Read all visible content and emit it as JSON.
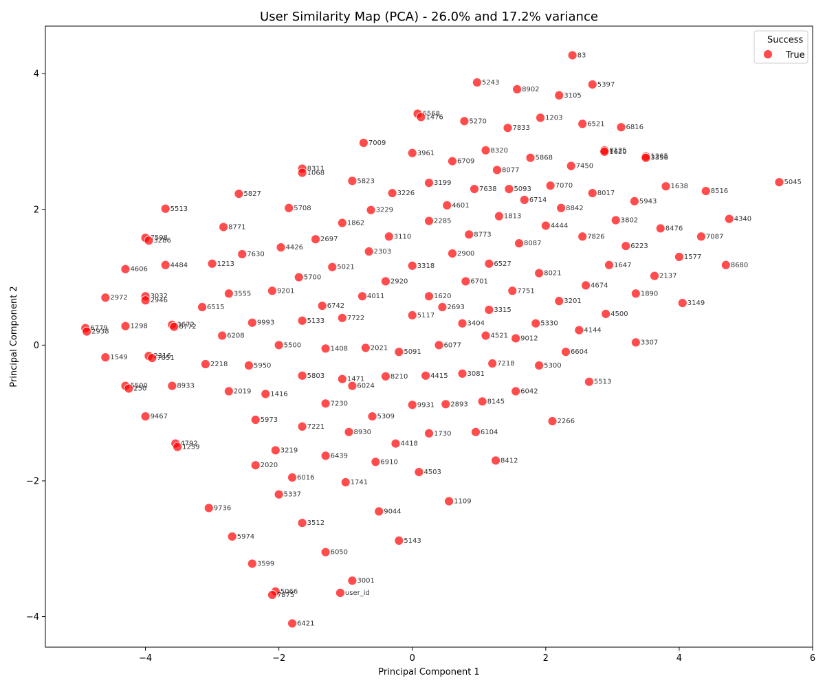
{
  "chart_data": {
    "type": "scatter",
    "title": "User Similarity Map (PCA) - 26.0% and 17.2% variance",
    "xlabel": "Principal Component 1",
    "ylabel": "Principal Component 2",
    "xlim": [
      -5.5,
      6.0
    ],
    "ylim": [
      -4.45,
      4.7
    ],
    "xticks": [
      -4,
      -2,
      0,
      2,
      4,
      6
    ],
    "yticks": [
      -4,
      -2,
      0,
      2,
      4
    ],
    "grid": false,
    "legend": {
      "title": "Success",
      "placement": "top-right",
      "entries": [
        {
          "label": "True",
          "color": "#ff0000"
        }
      ]
    },
    "series": [
      {
        "name": "True",
        "color": "#ff0000",
        "points": [
          {
            "x": 2.4,
            "y": 4.27,
            "label": "83"
          },
          {
            "x": 0.97,
            "y": 3.87,
            "label": "5243"
          },
          {
            "x": 1.57,
            "y": 3.77,
            "label": "8902"
          },
          {
            "x": 2.2,
            "y": 3.68,
            "label": "3105"
          },
          {
            "x": 2.7,
            "y": 3.84,
            "label": "5397"
          },
          {
            "x": 0.08,
            "y": 3.41,
            "label": "6568"
          },
          {
            "x": 0.13,
            "y": 3.36,
            "label": "1476"
          },
          {
            "x": 0.78,
            "y": 3.3,
            "label": "5270"
          },
          {
            "x": 1.43,
            "y": 3.2,
            "label": "7833"
          },
          {
            "x": 1.92,
            "y": 3.35,
            "label": "1203"
          },
          {
            "x": 2.55,
            "y": 3.26,
            "label": "6521"
          },
          {
            "x": 3.13,
            "y": 3.21,
            "label": "6816"
          },
          {
            "x": -0.73,
            "y": 2.98,
            "label": "7009"
          },
          {
            "x": 0.0,
            "y": 2.83,
            "label": "3961"
          },
          {
            "x": 0.6,
            "y": 2.71,
            "label": "6709"
          },
          {
            "x": 1.1,
            "y": 2.87,
            "label": "8320"
          },
          {
            "x": 1.27,
            "y": 2.58,
            "label": "8077"
          },
          {
            "x": 1.77,
            "y": 2.76,
            "label": "5868"
          },
          {
            "x": 2.38,
            "y": 2.64,
            "label": "7450"
          },
          {
            "x": 2.88,
            "y": 2.87,
            "label": "8125"
          },
          {
            "x": 2.88,
            "y": 2.85,
            "label": "1620"
          },
          {
            "x": 3.5,
            "y": 2.78,
            "label": "1265"
          },
          {
            "x": 3.5,
            "y": 2.76,
            "label": "3356"
          },
          {
            "x": -1.65,
            "y": 2.6,
            "label": "8311"
          },
          {
            "x": -1.65,
            "y": 2.54,
            "label": "1068"
          },
          {
            "x": -2.6,
            "y": 2.23,
            "label": "5827"
          },
          {
            "x": -0.9,
            "y": 2.42,
            "label": "5823"
          },
          {
            "x": -0.3,
            "y": 2.24,
            "label": "3226"
          },
          {
            "x": 0.25,
            "y": 2.39,
            "label": "3199"
          },
          {
            "x": 0.93,
            "y": 2.3,
            "label": "7638"
          },
          {
            "x": 1.45,
            "y": 2.3,
            "label": "5093"
          },
          {
            "x": 2.07,
            "y": 2.35,
            "label": "7070"
          },
          {
            "x": 2.7,
            "y": 2.24,
            "label": "8017"
          },
          {
            "x": 3.8,
            "y": 2.34,
            "label": "1638"
          },
          {
            "x": 4.4,
            "y": 2.27,
            "label": "8516"
          },
          {
            "x": 5.5,
            "y": 2.4,
            "label": "5045"
          },
          {
            "x": -3.7,
            "y": 2.01,
            "label": "5513"
          },
          {
            "x": -1.85,
            "y": 2.02,
            "label": "5708"
          },
          {
            "x": -0.62,
            "y": 1.99,
            "label": "3229"
          },
          {
            "x": 0.52,
            "y": 2.06,
            "label": "4601"
          },
          {
            "x": 1.68,
            "y": 2.14,
            "label": "6714"
          },
          {
            "x": 2.23,
            "y": 2.02,
            "label": "8842"
          },
          {
            "x": 3.33,
            "y": 2.12,
            "label": "5943"
          },
          {
            "x": 4.75,
            "y": 1.86,
            "label": "4340"
          },
          {
            "x": -4.0,
            "y": 1.58,
            "label": "7598"
          },
          {
            "x": -3.95,
            "y": 1.54,
            "label": "3286"
          },
          {
            "x": -2.83,
            "y": 1.74,
            "label": "8771"
          },
          {
            "x": -1.45,
            "y": 1.56,
            "label": "2697"
          },
          {
            "x": -1.05,
            "y": 1.8,
            "label": "1862"
          },
          {
            "x": 0.25,
            "y": 1.83,
            "label": "2285"
          },
          {
            "x": 1.3,
            "y": 1.9,
            "label": "1813"
          },
          {
            "x": 2.0,
            "y": 1.76,
            "label": "4444"
          },
          {
            "x": 3.05,
            "y": 1.84,
            "label": "3802"
          },
          {
            "x": 3.72,
            "y": 1.72,
            "label": "8476"
          },
          {
            "x": 4.33,
            "y": 1.6,
            "label": "7087"
          },
          {
            "x": -2.55,
            "y": 1.34,
            "label": "7630"
          },
          {
            "x": -1.97,
            "y": 1.44,
            "label": "4426"
          },
          {
            "x": -0.65,
            "y": 1.38,
            "label": "2303"
          },
          {
            "x": -0.35,
            "y": 1.6,
            "label": "3110"
          },
          {
            "x": 0.6,
            "y": 1.35,
            "label": "2900"
          },
          {
            "x": 0.85,
            "y": 1.63,
            "label": "8773"
          },
          {
            "x": 1.6,
            "y": 1.5,
            "label": "8087"
          },
          {
            "x": 2.55,
            "y": 1.6,
            "label": "7826"
          },
          {
            "x": 3.2,
            "y": 1.46,
            "label": "6223"
          },
          {
            "x": 4.0,
            "y": 1.3,
            "label": "1577"
          },
          {
            "x": -4.3,
            "y": 1.12,
            "label": "4606"
          },
          {
            "x": -3.7,
            "y": 1.18,
            "label": "4484"
          },
          {
            "x": -3.0,
            "y": 1.2,
            "label": "1213"
          },
          {
            "x": -1.7,
            "y": 1.0,
            "label": "5700"
          },
          {
            "x": -1.2,
            "y": 1.15,
            "label": "5021"
          },
          {
            "x": 0.0,
            "y": 1.17,
            "label": "3318"
          },
          {
            "x": 1.15,
            "y": 1.2,
            "label": "6527"
          },
          {
            "x": 1.9,
            "y": 1.06,
            "label": "8021"
          },
          {
            "x": 2.95,
            "y": 1.18,
            "label": "1647"
          },
          {
            "x": 3.63,
            "y": 1.02,
            "label": "2137"
          },
          {
            "x": 4.7,
            "y": 1.18,
            "label": "8680"
          },
          {
            "x": -4.6,
            "y": 0.7,
            "label": "2972"
          },
          {
            "x": -4.0,
            "y": 0.72,
            "label": "3032"
          },
          {
            "x": -4.0,
            "y": 0.66,
            "label": "2946"
          },
          {
            "x": -2.75,
            "y": 0.76,
            "label": "3555"
          },
          {
            "x": -2.1,
            "y": 0.8,
            "label": "9201"
          },
          {
            "x": -0.75,
            "y": 0.72,
            "label": "4011"
          },
          {
            "x": -0.4,
            "y": 0.94,
            "label": "2920"
          },
          {
            "x": 0.25,
            "y": 0.72,
            "label": "1620"
          },
          {
            "x": 0.8,
            "y": 0.94,
            "label": "6701"
          },
          {
            "x": 1.5,
            "y": 0.8,
            "label": "7751"
          },
          {
            "x": 2.6,
            "y": 0.88,
            "label": "4674"
          },
          {
            "x": 3.35,
            "y": 0.76,
            "label": "1890"
          },
          {
            "x": 4.05,
            "y": 0.62,
            "label": "3149"
          },
          {
            "x": -1.35,
            "y": 0.58,
            "label": "6742"
          },
          {
            "x": 0.45,
            "y": 0.56,
            "label": "2693"
          },
          {
            "x": 1.15,
            "y": 0.52,
            "label": "3315"
          },
          {
            "x": 2.2,
            "y": 0.65,
            "label": "3201"
          },
          {
            "x": 2.9,
            "y": 0.46,
            "label": "4500"
          },
          {
            "x": -4.9,
            "y": 0.25,
            "label": "6779"
          },
          {
            "x": -4.88,
            "y": 0.2,
            "label": "2938"
          },
          {
            "x": -4.3,
            "y": 0.28,
            "label": "1298"
          },
          {
            "x": -3.6,
            "y": 0.3,
            "label": "3672"
          },
          {
            "x": -3.57,
            "y": 0.27,
            "label": "6772"
          },
          {
            "x": -3.15,
            "y": 0.56,
            "label": "6515"
          },
          {
            "x": -2.4,
            "y": 0.33,
            "label": "9993"
          },
          {
            "x": -1.65,
            "y": 0.36,
            "label": "5133"
          },
          {
            "x": -1.05,
            "y": 0.4,
            "label": "7722"
          },
          {
            "x": 0.0,
            "y": 0.44,
            "label": "5117"
          },
          {
            "x": 0.75,
            "y": 0.32,
            "label": "3404"
          },
          {
            "x": 1.85,
            "y": 0.32,
            "label": "5330"
          },
          {
            "x": 2.5,
            "y": 0.22,
            "label": "4144"
          },
          {
            "x": -4.6,
            "y": -0.18,
            "label": "1549"
          },
          {
            "x": -3.95,
            "y": -0.16,
            "label": "2316"
          },
          {
            "x": -3.9,
            "y": -0.19,
            "label": "7051"
          },
          {
            "x": -2.85,
            "y": 0.14,
            "label": "6208"
          },
          {
            "x": -2.0,
            "y": 0.0,
            "label": "5500"
          },
          {
            "x": -1.3,
            "y": -0.05,
            "label": "1408"
          },
          {
            "x": -0.7,
            "y": -0.04,
            "label": "2021"
          },
          {
            "x": -0.2,
            "y": -0.1,
            "label": "5091"
          },
          {
            "x": 0.4,
            "y": 0.0,
            "label": "6077"
          },
          {
            "x": 1.1,
            "y": 0.14,
            "label": "4521"
          },
          {
            "x": 1.55,
            "y": 0.1,
            "label": "9012"
          },
          {
            "x": 2.3,
            "y": -0.1,
            "label": "6604"
          },
          {
            "x": 3.35,
            "y": 0.04,
            "label": "3307"
          },
          {
            "x": -4.3,
            "y": -0.6,
            "label": "5500"
          },
          {
            "x": -4.25,
            "y": -0.64,
            "label": "250"
          },
          {
            "x": -3.6,
            "y": -0.6,
            "label": "8933"
          },
          {
            "x": -3.1,
            "y": -0.28,
            "label": "2218"
          },
          {
            "x": -2.45,
            "y": -0.3,
            "label": "5950"
          },
          {
            "x": -1.65,
            "y": -0.45,
            "label": "5803"
          },
          {
            "x": -1.05,
            "y": -0.5,
            "label": "1471"
          },
          {
            "x": -0.9,
            "y": -0.6,
            "label": "6024"
          },
          {
            "x": -0.4,
            "y": -0.46,
            "label": "8210"
          },
          {
            "x": 0.2,
            "y": -0.45,
            "label": "4415"
          },
          {
            "x": 0.75,
            "y": -0.42,
            "label": "3081"
          },
          {
            "x": 1.2,
            "y": -0.27,
            "label": "7218"
          },
          {
            "x": 1.9,
            "y": -0.3,
            "label": "5300"
          },
          {
            "x": 2.65,
            "y": -0.54,
            "label": "5513"
          },
          {
            "x": -4.0,
            "y": -1.05,
            "label": "9467"
          },
          {
            "x": -3.55,
            "y": -1.45,
            "label": "4792"
          },
          {
            "x": -3.52,
            "y": -1.5,
            "label": "1259"
          },
          {
            "x": -2.75,
            "y": -0.68,
            "label": "2019"
          },
          {
            "x": -2.2,
            "y": -0.72,
            "label": "1416"
          },
          {
            "x": -2.35,
            "y": -1.1,
            "label": "5973"
          },
          {
            "x": -1.3,
            "y": -0.86,
            "label": "7230"
          },
          {
            "x": -0.6,
            "y": -1.05,
            "label": "5309"
          },
          {
            "x": 0.0,
            "y": -0.88,
            "label": "9931"
          },
          {
            "x": 0.5,
            "y": -0.87,
            "label": "2893"
          },
          {
            "x": 1.05,
            "y": -0.83,
            "label": "8145"
          },
          {
            "x": 1.55,
            "y": -0.68,
            "label": "6042"
          },
          {
            "x": 2.1,
            "y": -1.12,
            "label": "2266"
          },
          {
            "x": -1.65,
            "y": -1.2,
            "label": "7221"
          },
          {
            "x": -0.95,
            "y": -1.28,
            "label": "8930"
          },
          {
            "x": -0.25,
            "y": -1.45,
            "label": "4418"
          },
          {
            "x": 0.25,
            "y": -1.3,
            "label": "1730"
          },
          {
            "x": 0.95,
            "y": -1.28,
            "label": "6104"
          },
          {
            "x": -2.05,
            "y": -1.55,
            "label": "3219"
          },
          {
            "x": -1.3,
            "y": -1.63,
            "label": "6439"
          },
          {
            "x": -0.55,
            "y": -1.72,
            "label": "6910"
          },
          {
            "x": 0.1,
            "y": -1.87,
            "label": "4503"
          },
          {
            "x": 1.25,
            "y": -1.7,
            "label": "8412"
          },
          {
            "x": -2.35,
            "y": -1.77,
            "label": "2020"
          },
          {
            "x": -1.8,
            "y": -1.95,
            "label": "6016"
          },
          {
            "x": -1.0,
            "y": -2.02,
            "label": "1741"
          },
          {
            "x": -2.0,
            "y": -2.2,
            "label": "5337"
          },
          {
            "x": -0.5,
            "y": -2.45,
            "label": "9044"
          },
          {
            "x": 0.55,
            "y": -2.3,
            "label": "1109"
          },
          {
            "x": -3.05,
            "y": -2.4,
            "label": "9736"
          },
          {
            "x": -2.7,
            "y": -2.82,
            "label": "5974"
          },
          {
            "x": -1.65,
            "y": -2.62,
            "label": "3512"
          },
          {
            "x": -0.2,
            "y": -2.88,
            "label": "5143"
          },
          {
            "x": -2.4,
            "y": -3.22,
            "label": "3599"
          },
          {
            "x": -1.3,
            "y": -3.05,
            "label": "6050"
          },
          {
            "x": -0.9,
            "y": -3.47,
            "label": "3001"
          },
          {
            "x": -2.05,
            "y": -3.63,
            "label": "5066"
          },
          {
            "x": -2.1,
            "y": -3.68,
            "label": "7875"
          },
          {
            "x": -1.08,
            "y": -3.65,
            "label": "user_id"
          },
          {
            "x": -1.8,
            "y": -4.1,
            "label": "6421"
          }
        ]
      }
    ]
  }
}
